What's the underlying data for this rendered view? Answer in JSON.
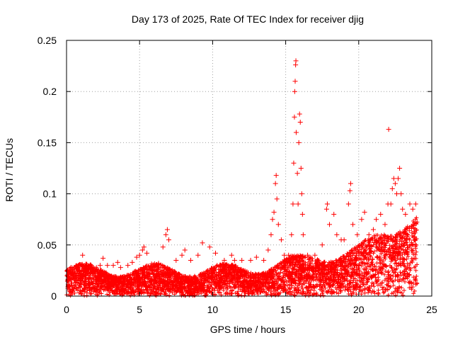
{
  "chart_data": {
    "type": "scatter",
    "title": "Day 173 of 2025, Rate Of TEC Index for receiver djig",
    "xlabel": "GPS time / hours",
    "ylabel": "ROTI / TECUs",
    "xlim": [
      0,
      25
    ],
    "ylim": [
      0,
      0.25
    ],
    "x_ticks": [
      0,
      5,
      10,
      15,
      20,
      25
    ],
    "x_tick_labels": [
      "0",
      "5",
      "10",
      "15",
      "20",
      "25"
    ],
    "y_ticks": [
      0,
      0.05,
      0.1,
      0.15,
      0.2,
      0.25
    ],
    "y_tick_labels": [
      "0",
      "0.05",
      "0.1",
      "0.15",
      "0.2",
      "0.25"
    ],
    "grid": true,
    "marker": "+",
    "color": "#ff0000",
    "series": [
      {
        "name": "ROTI",
        "points": [
          [
            0.1,
            0.025
          ],
          [
            0.2,
            0.024
          ],
          [
            0.3,
            0.028
          ],
          [
            0.5,
            0.02
          ],
          [
            0.9,
            0.025
          ],
          [
            1.1,
            0.04
          ],
          [
            1.2,
            0.03
          ],
          [
            1.5,
            0.028
          ],
          [
            2.0,
            0.025
          ],
          [
            2.3,
            0.03
          ],
          [
            2.5,
            0.037
          ],
          [
            2.8,
            0.03
          ],
          [
            3.2,
            0.03
          ],
          [
            3.5,
            0.033
          ],
          [
            3.7,
            0.028
          ],
          [
            4.2,
            0.03
          ],
          [
            4.5,
            0.033
          ],
          [
            4.8,
            0.038
          ],
          [
            5.0,
            0.04
          ],
          [
            5.2,
            0.045
          ],
          [
            5.3,
            0.048
          ],
          [
            5.5,
            0.042
          ],
          [
            6.0,
            0.03
          ],
          [
            6.3,
            0.032
          ],
          [
            6.6,
            0.048
          ],
          [
            6.8,
            0.06
          ],
          [
            6.9,
            0.065
          ],
          [
            7.0,
            0.055
          ],
          [
            7.5,
            0.035
          ],
          [
            7.9,
            0.04
          ],
          [
            8.1,
            0.045
          ],
          [
            8.5,
            0.035
          ],
          [
            9.0,
            0.04
          ],
          [
            9.3,
            0.052
          ],
          [
            9.8,
            0.048
          ],
          [
            10.2,
            0.042
          ],
          [
            10.8,
            0.035
          ],
          [
            11.3,
            0.04
          ],
          [
            11.5,
            0.035
          ],
          [
            12.0,
            0.035
          ],
          [
            12.6,
            0.035
          ],
          [
            13.0,
            0.038
          ],
          [
            13.5,
            0.035
          ],
          [
            13.8,
            0.045
          ],
          [
            14.0,
            0.06
          ],
          [
            14.1,
            0.075
          ],
          [
            14.2,
            0.082
          ],
          [
            14.3,
            0.11
          ],
          [
            14.35,
            0.118
          ],
          [
            14.4,
            0.095
          ],
          [
            14.5,
            0.07
          ],
          [
            14.7,
            0.055
          ],
          [
            14.9,
            0.04
          ],
          [
            15.2,
            0.04
          ],
          [
            15.4,
            0.06
          ],
          [
            15.5,
            0.09
          ],
          [
            15.55,
            0.13
          ],
          [
            15.6,
            0.175
          ],
          [
            15.62,
            0.2
          ],
          [
            15.65,
            0.21
          ],
          [
            15.68,
            0.226
          ],
          [
            15.7,
            0.23
          ],
          [
            15.72,
            0.16
          ],
          [
            15.8,
            0.12
          ],
          [
            15.85,
            0.09
          ],
          [
            15.9,
            0.15
          ],
          [
            15.95,
            0.178
          ],
          [
            16.0,
            0.17
          ],
          [
            16.05,
            0.125
          ],
          [
            16.1,
            0.1
          ],
          [
            16.15,
            0.08
          ],
          [
            16.2,
            0.06
          ],
          [
            16.5,
            0.04
          ],
          [
            17.0,
            0.04
          ],
          [
            17.5,
            0.05
          ],
          [
            17.8,
            0.085
          ],
          [
            17.85,
            0.09
          ],
          [
            18.0,
            0.07
          ],
          [
            18.3,
            0.08
          ],
          [
            18.5,
            0.06
          ],
          [
            18.8,
            0.055
          ],
          [
            19.0,
            0.055
          ],
          [
            19.3,
            0.09
          ],
          [
            19.4,
            0.103
          ],
          [
            19.45,
            0.11
          ],
          [
            19.6,
            0.07
          ],
          [
            19.9,
            0.06
          ],
          [
            20.2,
            0.075
          ],
          [
            20.4,
            0.082
          ],
          [
            20.7,
            0.06
          ],
          [
            21.0,
            0.065
          ],
          [
            21.2,
            0.075
          ],
          [
            21.5,
            0.08
          ],
          [
            21.8,
            0.07
          ],
          [
            22.0,
            0.09
          ],
          [
            22.05,
            0.163
          ],
          [
            22.2,
            0.09
          ],
          [
            22.3,
            0.105
          ],
          [
            22.4,
            0.115
          ],
          [
            22.5,
            0.11
          ],
          [
            22.6,
            0.1
          ],
          [
            22.7,
            0.115
          ],
          [
            22.8,
            0.125
          ],
          [
            22.9,
            0.1
          ],
          [
            23.0,
            0.085
          ],
          [
            23.2,
            0.08
          ],
          [
            23.5,
            0.09
          ],
          [
            23.7,
            0.085
          ],
          [
            23.9,
            0.09
          ]
        ]
      }
    ]
  }
}
